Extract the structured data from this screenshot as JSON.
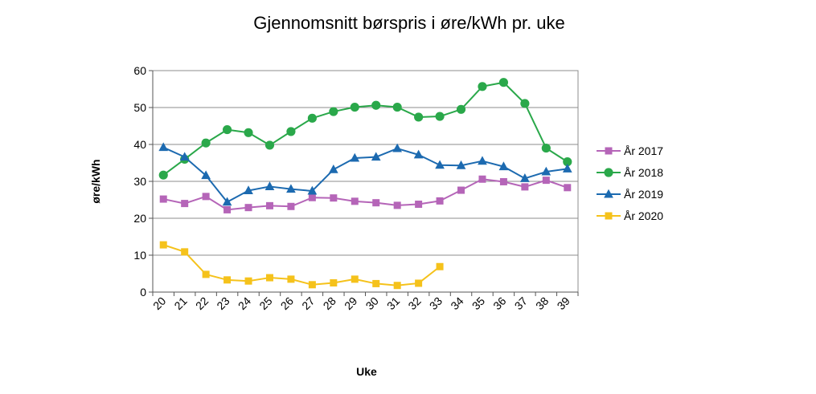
{
  "chart_data": {
    "type": "line",
    "title": "Gjennomsnitt børspris i øre/kWh pr. uke",
    "xlabel": "Uke",
    "ylabel": "øre/kWh",
    "categories": [
      "20",
      "21",
      "22",
      "23",
      "24",
      "25",
      "26",
      "27",
      "28",
      "29",
      "30",
      "31",
      "32",
      "33",
      "34",
      "35",
      "36",
      "37",
      "38",
      "39"
    ],
    "ylim": [
      0,
      60
    ],
    "yticks": [
      0,
      10,
      20,
      30,
      40,
      50,
      60
    ],
    "grid": true,
    "legend_position": "right",
    "series": [
      {
        "name": "År 2017",
        "color": "#b565b8",
        "marker": "square",
        "values": [
          25.2,
          24.0,
          25.9,
          22.3,
          22.9,
          23.4,
          23.2,
          25.6,
          25.5,
          24.6,
          24.2,
          23.5,
          23.8,
          24.7,
          27.6,
          30.6,
          29.9,
          28.5,
          30.3,
          28.3
        ]
      },
      {
        "name": "År 2018",
        "color": "#2aa84a",
        "marker": "circle",
        "values": [
          31.7,
          36.0,
          40.4,
          44.0,
          43.2,
          39.8,
          43.5,
          47.1,
          48.9,
          50.1,
          50.6,
          50.1,
          47.4,
          47.6,
          49.5,
          55.7,
          56.8,
          51.1,
          39.0,
          35.3
        ]
      },
      {
        "name": "År 2019",
        "color": "#1c6ab0",
        "marker": "triangle",
        "values": [
          39.2,
          36.6,
          31.6,
          24.4,
          27.5,
          28.6,
          27.9,
          27.4,
          33.2,
          36.3,
          36.6,
          38.9,
          37.2,
          34.4,
          34.3,
          35.5,
          34.0,
          30.8,
          32.6,
          33.4
        ]
      },
      {
        "name": "År 2020",
        "color": "#f5c21b",
        "marker": "square",
        "values": [
          12.8,
          10.9,
          4.8,
          3.3,
          3.0,
          3.9,
          3.5,
          2.0,
          2.5,
          3.5,
          2.3,
          1.8,
          2.4,
          6.9,
          null,
          null,
          null,
          null,
          null,
          null
        ]
      }
    ]
  }
}
